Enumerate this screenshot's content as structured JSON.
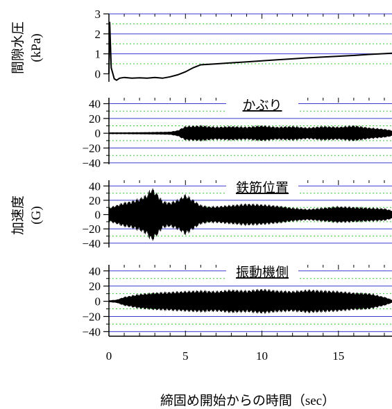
{
  "chart_data": {
    "type": "line",
    "x_axis": {
      "label": "締固め開始からの時間（sec）",
      "range": [
        0,
        18.5
      ],
      "ticks": [
        0,
        5,
        10,
        15
      ],
      "tick_labels": [
        "0",
        "5",
        "10",
        "15"
      ]
    },
    "grid": true,
    "panels": [
      {
        "id": "pore-pressure",
        "ylabel": "間隙水圧",
        "yunit": "(kPa)",
        "ylim": [
          -0.4,
          3
        ],
        "yticks": [
          0,
          1,
          2,
          3
        ],
        "ytick_labels": [
          "0",
          "1",
          "2",
          "3"
        ],
        "series": {
          "kind": "trace",
          "x": [
            0,
            0.05,
            0.15,
            0.35,
            0.5,
            0.7,
            1.0,
            1.5,
            2.0,
            2.5,
            3.0,
            3.5,
            4.0,
            4.5,
            5.0,
            5.5,
            6.0,
            7.0,
            8.0,
            9.0,
            10.0,
            11.0,
            12.0,
            13.0,
            14.0,
            15.0,
            16.0,
            17.0,
            18.0,
            18.5
          ],
          "y": [
            0,
            2.6,
            0.3,
            -0.25,
            -0.32,
            -0.22,
            -0.18,
            -0.22,
            -0.2,
            -0.22,
            -0.18,
            -0.22,
            -0.15,
            -0.05,
            0.1,
            0.3,
            0.45,
            0.5,
            0.55,
            0.6,
            0.65,
            0.7,
            0.75,
            0.8,
            0.84,
            0.88,
            0.92,
            0.97,
            1.01,
            1.03
          ]
        }
      },
      {
        "id": "cover",
        "title": "かぶり",
        "ylabel": "",
        "ylim": [
          -42,
          48
        ],
        "yticks": [
          40,
          20,
          0,
          -20,
          -40
        ],
        "ytick_labels": [
          "40",
          "20",
          "0",
          "−20",
          "−40"
        ],
        "series": {
          "kind": "envelope",
          "x": [
            0,
            0.5,
            1,
            2,
            3,
            4,
            4.5,
            5,
            6,
            7,
            8,
            9,
            10,
            11,
            12,
            13,
            14,
            15,
            16,
            17,
            18,
            18.5
          ],
          "amp": [
            1,
            1,
            1,
            1.2,
            1.5,
            2,
            4,
            10,
            11,
            9,
            10,
            9,
            11,
            9,
            10,
            8,
            10,
            9,
            11,
            8,
            6,
            4
          ]
        }
      },
      {
        "id": "rebar-position",
        "title": "鉄筋位置",
        "ylabel": "加速度",
        "yunit": "(G)",
        "ylim": [
          -46,
          48
        ],
        "yticks": [
          40,
          20,
          0,
          -20,
          -40
        ],
        "ytick_labels": [
          "40",
          "20",
          "0",
          "−20",
          "−40"
        ],
        "series": {
          "kind": "envelope",
          "x": [
            0,
            0.5,
            1,
            1.5,
            2,
            2.5,
            2.8,
            3.2,
            3.5,
            4,
            4.5,
            5,
            5.5,
            6,
            6.5,
            7,
            8,
            9,
            10,
            11,
            12,
            13,
            14,
            15,
            16,
            17,
            18,
            18.5
          ],
          "amp": [
            10,
            14,
            18,
            20,
            24,
            30,
            40,
            30,
            20,
            18,
            22,
            30,
            22,
            14,
            12,
            12,
            14,
            16,
            15,
            13,
            10,
            8,
            10,
            12,
            11,
            10,
            9,
            6
          ]
        }
      },
      {
        "id": "vibrator-side",
        "title": "振動機側",
        "ylabel": "",
        "ylim": [
          -46,
          48
        ],
        "yticks": [
          40,
          20,
          0,
          -20,
          -40
        ],
        "ytick_labels": [
          "40",
          "20",
          "0",
          "−20",
          "−40"
        ],
        "series": {
          "kind": "envelope",
          "x": [
            0,
            0.5,
            1,
            1.5,
            2,
            3,
            4,
            5,
            6,
            7,
            8,
            9,
            10,
            11,
            12,
            13,
            14,
            15,
            16,
            17,
            18,
            18.5
          ],
          "amp": [
            1,
            2,
            6,
            8,
            10,
            12,
            13,
            14,
            15,
            14,
            16,
            15,
            17,
            15,
            14,
            16,
            15,
            14,
            12,
            11,
            6,
            2
          ]
        }
      }
    ]
  }
}
